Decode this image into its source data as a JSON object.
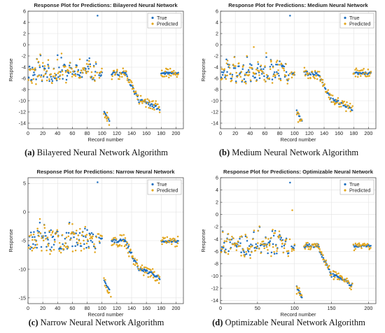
{
  "captions": [
    {
      "letter": "(a)",
      "text": " Bilayered Neural Network Algorithm"
    },
    {
      "letter": "(b)",
      "text": " Medium Neural Network Algorithm"
    },
    {
      "letter": "(c)",
      "text": " Narrow Neural Network Algorithm"
    },
    {
      "letter": "(d)",
      "text": " Optimizable Neural Network Algorithm"
    }
  ],
  "colors": {
    "true": "#1f6fbf",
    "predicted": "#e3a61c"
  },
  "chart_data": [
    {
      "type": "scatter",
      "title": "Response Plot for Predictions: Bilayered Neural Network",
      "xlabel": "Record number",
      "ylabel": "Response",
      "xlim": [
        0,
        210
      ],
      "ylim": [
        -15,
        6
      ],
      "xticks": [
        0,
        20,
        40,
        60,
        80,
        100,
        120,
        140,
        160,
        180,
        200
      ],
      "yticks": [
        6,
        4,
        2,
        0,
        -2,
        -4,
        -6,
        -8,
        -10,
        -12,
        -14
      ],
      "grid": true,
      "legend_position": "top-right",
      "series": [
        {
          "name": "True"
        },
        {
          "name": "Predicted"
        }
      ]
    },
    {
      "type": "scatter",
      "title": "Response Plot for Predictions: Medium Neural Network",
      "xlabel": "Record number",
      "ylabel": "Response",
      "xlim": [
        0,
        210
      ],
      "ylim": [
        -15,
        6
      ],
      "xticks": [
        0,
        20,
        40,
        60,
        80,
        100,
        120,
        140,
        160,
        180,
        200
      ],
      "yticks": [
        6,
        4,
        2,
        0,
        -2,
        -4,
        -6,
        -8,
        -10,
        -12,
        -14
      ],
      "grid": true,
      "legend_position": "top-right",
      "series": [
        {
          "name": "True"
        },
        {
          "name": "Predicted"
        }
      ]
    },
    {
      "type": "scatter",
      "title": "Response Plot for Predictions: Narrow Neural Network",
      "xlabel": "Record number",
      "ylabel": "Response",
      "xlim": [
        0,
        210
      ],
      "ylim": [
        -16,
        6
      ],
      "xticks": [
        0,
        20,
        40,
        60,
        80,
        100,
        120,
        140,
        160,
        180,
        200
      ],
      "yticks": [
        5,
        0,
        -5,
        -10,
        -15
      ],
      "grid": true,
      "legend_position": "top-right",
      "series": [
        {
          "name": "True"
        },
        {
          "name": "Predicted"
        }
      ]
    },
    {
      "type": "scatter",
      "title": "Response Plot for Predictions: Optimizable Neural Network",
      "xlabel": "Record number",
      "ylabel": "Response",
      "xlim": [
        0,
        210
      ],
      "ylim": [
        -14.5,
        6
      ],
      "xticks": [
        0,
        50,
        100,
        150,
        200
      ],
      "yticks": [
        6,
        4,
        2,
        0,
        -2,
        -4,
        -6,
        -8,
        -10,
        -12,
        -14
      ],
      "grid": true,
      "legend_position": "top-right",
      "series": [
        {
          "name": "True"
        },
        {
          "name": "Predicted"
        }
      ]
    }
  ]
}
